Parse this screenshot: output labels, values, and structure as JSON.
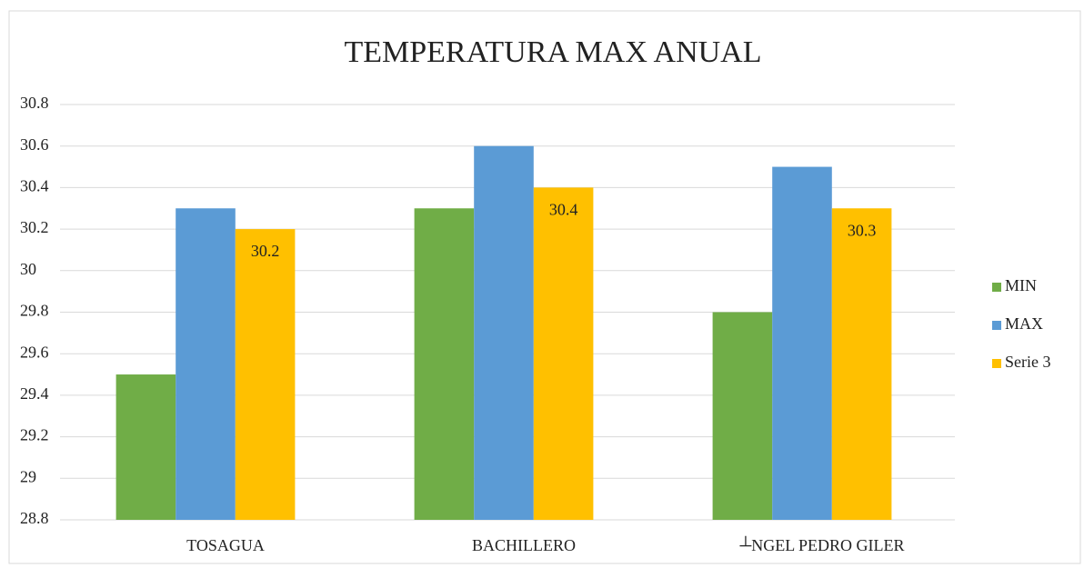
{
  "chart_data": {
    "type": "bar",
    "title": "TEMPERATURA MAX ANUAL",
    "categories": [
      "TOSAGUA",
      "BACHILLERO",
      "┴NGEL PEDRO GILER"
    ],
    "series": [
      {
        "name": "MIN",
        "color": "#70ad47",
        "values": [
          29.5,
          30.3,
          29.8
        ]
      },
      {
        "name": "MAX",
        "color": "#5b9bd5",
        "values": [
          30.3,
          30.6,
          30.5
        ]
      },
      {
        "name": "Serie 3",
        "color": "#ffc000",
        "values": [
          30.2,
          30.4,
          30.3
        ],
        "show_labels": true
      }
    ],
    "ylim": [
      28.8,
      30.8
    ],
    "yticks": [
      28.8,
      29,
      29.2,
      29.4,
      29.6,
      29.8,
      30,
      30.2,
      30.4,
      30.6,
      30.8
    ],
    "grid": true,
    "legend": "right"
  }
}
